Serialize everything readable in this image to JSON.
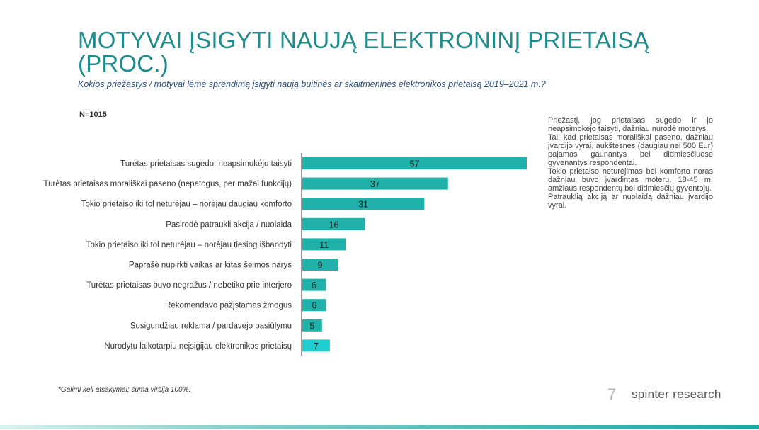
{
  "title": "MOTYVAI ĮSIGYTI NAUJĄ ELEKTRONINĮ PRIETAISĄ (PROC.)",
  "subtitle": "Kokios priežastys / motyvai lėmė sprendimą įsigyti naują buitinės ar skaitmeninės elektronikos prietaisą 2019–2021 m.?",
  "sample_label": "N=1015",
  "chart_data": {
    "type": "bar",
    "orientation": "horizontal",
    "categories": [
      "Turėtas prietaisas sugedo, neapsimokėjo taisyti",
      "Turėtas prietaisas morališkai paseno (nepatogus, per mažai funkcijų)",
      "Tokio prietaiso iki tol neturėjau – norėjau daugiau komforto",
      "Pasirodė patraukli akcija / nuolaida",
      "Tokio prietaiso iki tol neturėjau – norėjau tiesiog išbandyti",
      "Paprašė nupirkti vaikas ar kitas šeimos narys",
      "Turėtas prietaisas buvo negražus / nebetiko prie interjero",
      "Rekomendavo pažįstamas žmogus",
      "Susigundžiau reklama / pardavėjo pasiūlymu",
      "Nurodytu laikotarpiu neįsigijau elektronikos prietaisų"
    ],
    "values": [
      57,
      37,
      31,
      16,
      11,
      9,
      6,
      6,
      5,
      7
    ],
    "xlim": [
      0,
      57
    ],
    "grid": false,
    "colors": {
      "bar": "#20b2aa",
      "highlight_bar": "#1fcfcf",
      "label": "#333333"
    },
    "highlight_index": 9
  },
  "notes": [
    "Priežastį, jog prietaisas sugedo ir jo neapsimokėjo taisyti, dažniau nurodė moterys.",
    "Tai, kad prietaisas morališkai paseno, dažniau įvardijo vyrai, aukštesnes (daugiau nei 500 Eur) pajamas gaunantys bei didmiesčiuose gyvenantys respondentai.",
    "Tokio prietaiso neturėjimas bei komforto noras dažniau buvo įvardintas moterų, 18-45 m. amžiaus respondentų bei didmiesčių gyventojų.",
    "Patrauklią akciją ar nuolaidą dažniau įvardijo vyrai."
  ],
  "footnote": "*Galimi keli atsakymai; suma viršija 100%.",
  "page_number": "7",
  "brand": "spinter research",
  "colors": {
    "title": "#1e8c8c",
    "subtitle": "#2c4d78"
  }
}
